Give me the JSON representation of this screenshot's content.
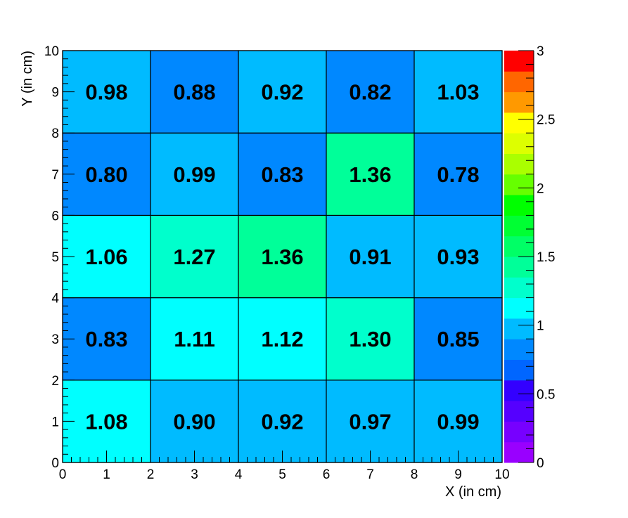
{
  "chart_data": {
    "type": "heatmap",
    "title": "",
    "xlabel": "X (in cm)",
    "ylabel": "Y (in cm)",
    "xlim": [
      0,
      10
    ],
    "ylim": [
      0,
      10
    ],
    "x_ticks": [
      "0",
      "1",
      "2",
      "3",
      "4",
      "5",
      "6",
      "7",
      "8",
      "9",
      "10"
    ],
    "y_ticks": [
      "0",
      "1",
      "2",
      "3",
      "4",
      "5",
      "6",
      "7",
      "8",
      "9",
      "10"
    ],
    "x_bin_edges": [
      0,
      2,
      4,
      6,
      8,
      10
    ],
    "y_bin_edges": [
      0,
      2,
      4,
      6,
      8,
      10
    ],
    "values": [
      [
        1.08,
        0.9,
        0.92,
        0.97,
        0.99
      ],
      [
        0.83,
        1.11,
        1.12,
        1.3,
        0.85
      ],
      [
        1.06,
        1.27,
        1.36,
        0.91,
        0.93
      ],
      [
        0.8,
        0.99,
        0.83,
        1.36,
        0.78
      ],
      [
        0.98,
        0.88,
        0.92,
        0.82,
        1.03
      ]
    ],
    "value_labels": [
      [
        "1.08",
        "0.90",
        "0.92",
        "0.97",
        "0.99"
      ],
      [
        "0.83",
        "1.11",
        "1.12",
        "1.30",
        "0.85"
      ],
      [
        "1.06",
        "1.27",
        "1.36",
        "0.91",
        "0.93"
      ],
      [
        "0.80",
        "0.99",
        "0.83",
        "1.36",
        "0.78"
      ],
      [
        "0.98",
        "0.88",
        "0.92",
        "0.82",
        "1.03"
      ]
    ],
    "colorbar": {
      "range": [
        0,
        3
      ],
      "ticks": [
        "0",
        "0.5",
        "1",
        "1.5",
        "2",
        "2.5",
        "3"
      ],
      "colors": [
        "#9900ff",
        "#7700ff",
        "#5500ff",
        "#3300ff",
        "#0066ff",
        "#0088ff",
        "#00bbff",
        "#00ffff",
        "#00ffcc",
        "#00ff99",
        "#00ff66",
        "#00ff33",
        "#00ff00",
        "#66ff00",
        "#aaff00",
        "#ddff00",
        "#ffff00",
        "#ff9900",
        "#ff6600",
        "#ff0000"
      ]
    },
    "grid": false,
    "legend": "colorbar at right"
  }
}
